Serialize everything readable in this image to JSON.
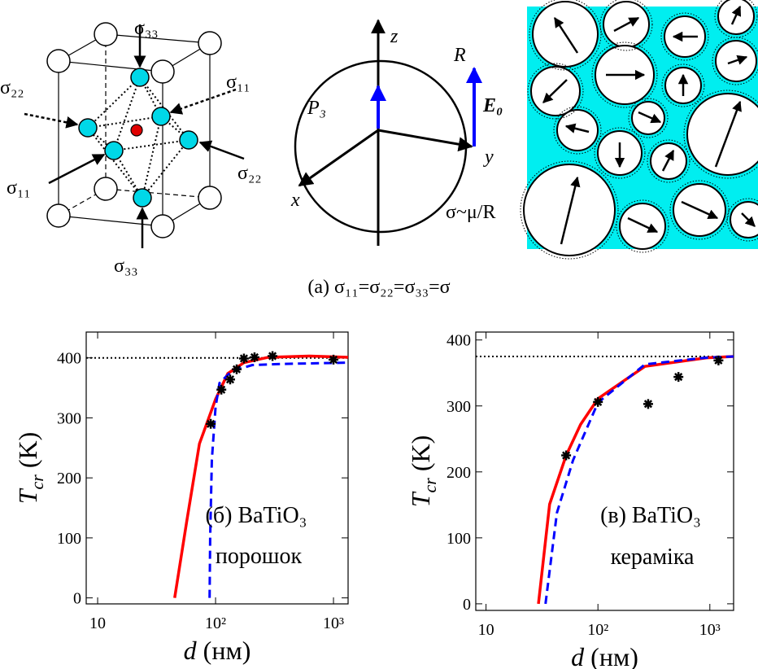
{
  "diagram": {
    "stress_labels": [
      "σ₃₃",
      "σ₂₂",
      "σ₁₁",
      "σ₂₂",
      "σ₁₁",
      "σ₃₃"
    ],
    "axis_labels": [
      "z",
      "y",
      "x"
    ],
    "radius_label": "R",
    "polarization_label": "P₃",
    "field_label": "E₀",
    "surface_stress_label": "σ~μ/R",
    "caption": "(a)  σ₁₁=σ₂₂=σ₃₃=σ"
  },
  "chart_data": [
    {
      "type": "line",
      "xscale": "log",
      "xlim": [
        8,
        1330
      ],
      "ylim": [
        -10,
        443
      ],
      "xticks": [
        10,
        {
          "value": 100,
          "label": "10²"
        },
        {
          "value": 1000,
          "label": "10³"
        }
      ],
      "yticks": [
        0,
        100,
        200,
        300,
        400
      ],
      "hline": 400,
      "grid": false,
      "ylabel": {
        "symbol": "T",
        "sub": "cr",
        "unit": " (K)"
      },
      "xlabel": {
        "symbol": "d",
        "unit": " (нм)"
      },
      "annotations": [
        "(б) BaTiO₃",
        "порошок"
      ],
      "series": [
        {
          "color": "#ff0000",
          "style": "solid",
          "x": [
            45,
            57,
            73,
            100,
            127,
            174,
            280,
            620,
            1330
          ],
          "values": [
            0,
            128,
            257,
            331,
            374,
            392,
            401,
            403,
            401
          ]
        },
        {
          "color": "#0000ff",
          "style": "dashed",
          "x": [
            89,
            90,
            93,
            100,
            108,
            137,
            205,
            386,
            1330
          ],
          "values": [
            0,
            100,
            230,
            318,
            358,
            378,
            388,
            390,
            392
          ]
        },
        {
          "color": "#000000",
          "style": "star",
          "x": [
            91,
            112,
            133,
            151,
            174,
            214,
            304,
            1000
          ],
          "values": [
            290,
            347,
            364,
            381,
            399,
            401,
            403,
            397
          ]
        }
      ]
    },
    {
      "type": "line",
      "xscale": "log",
      "xlim": [
        8.1,
        1630
      ],
      "ylim": [
        -10,
        412
      ],
      "xticks": [
        10,
        {
          "value": 100,
          "label": "10²"
        },
        {
          "value": 1000,
          "label": "10³"
        }
      ],
      "yticks": [
        0,
        100,
        200,
        300,
        400
      ],
      "hline": 375,
      "grid": false,
      "ylabel": {
        "symbol": "T",
        "sub": "cr",
        "unit": " (K)"
      },
      "xlabel": {
        "symbol": "d",
        "unit": " (нм)"
      },
      "annotations": [
        "(в) BaTiO₃",
        "кераміка"
      ],
      "series": [
        {
          "color": "#ff0000",
          "style": "solid",
          "x": [
            29.4,
            37,
            52,
            70,
            100,
            263,
            935,
            1630
          ],
          "values": [
            0,
            151,
            225,
            272,
            311,
            360,
            373,
            375
          ]
        },
        {
          "color": "#0000ff",
          "style": "dashed",
          "x": [
            34,
            43,
            60,
            100,
            263,
            900,
            1630
          ],
          "values": [
            0,
            138,
            218,
            305,
            363,
            373,
            375
          ]
        },
        {
          "color": "#000000",
          "style": "star",
          "x": [
            52,
            100,
            281,
            524,
            1194
          ],
          "values": [
            225,
            306,
            303,
            344,
            369
          ]
        }
      ]
    }
  ]
}
